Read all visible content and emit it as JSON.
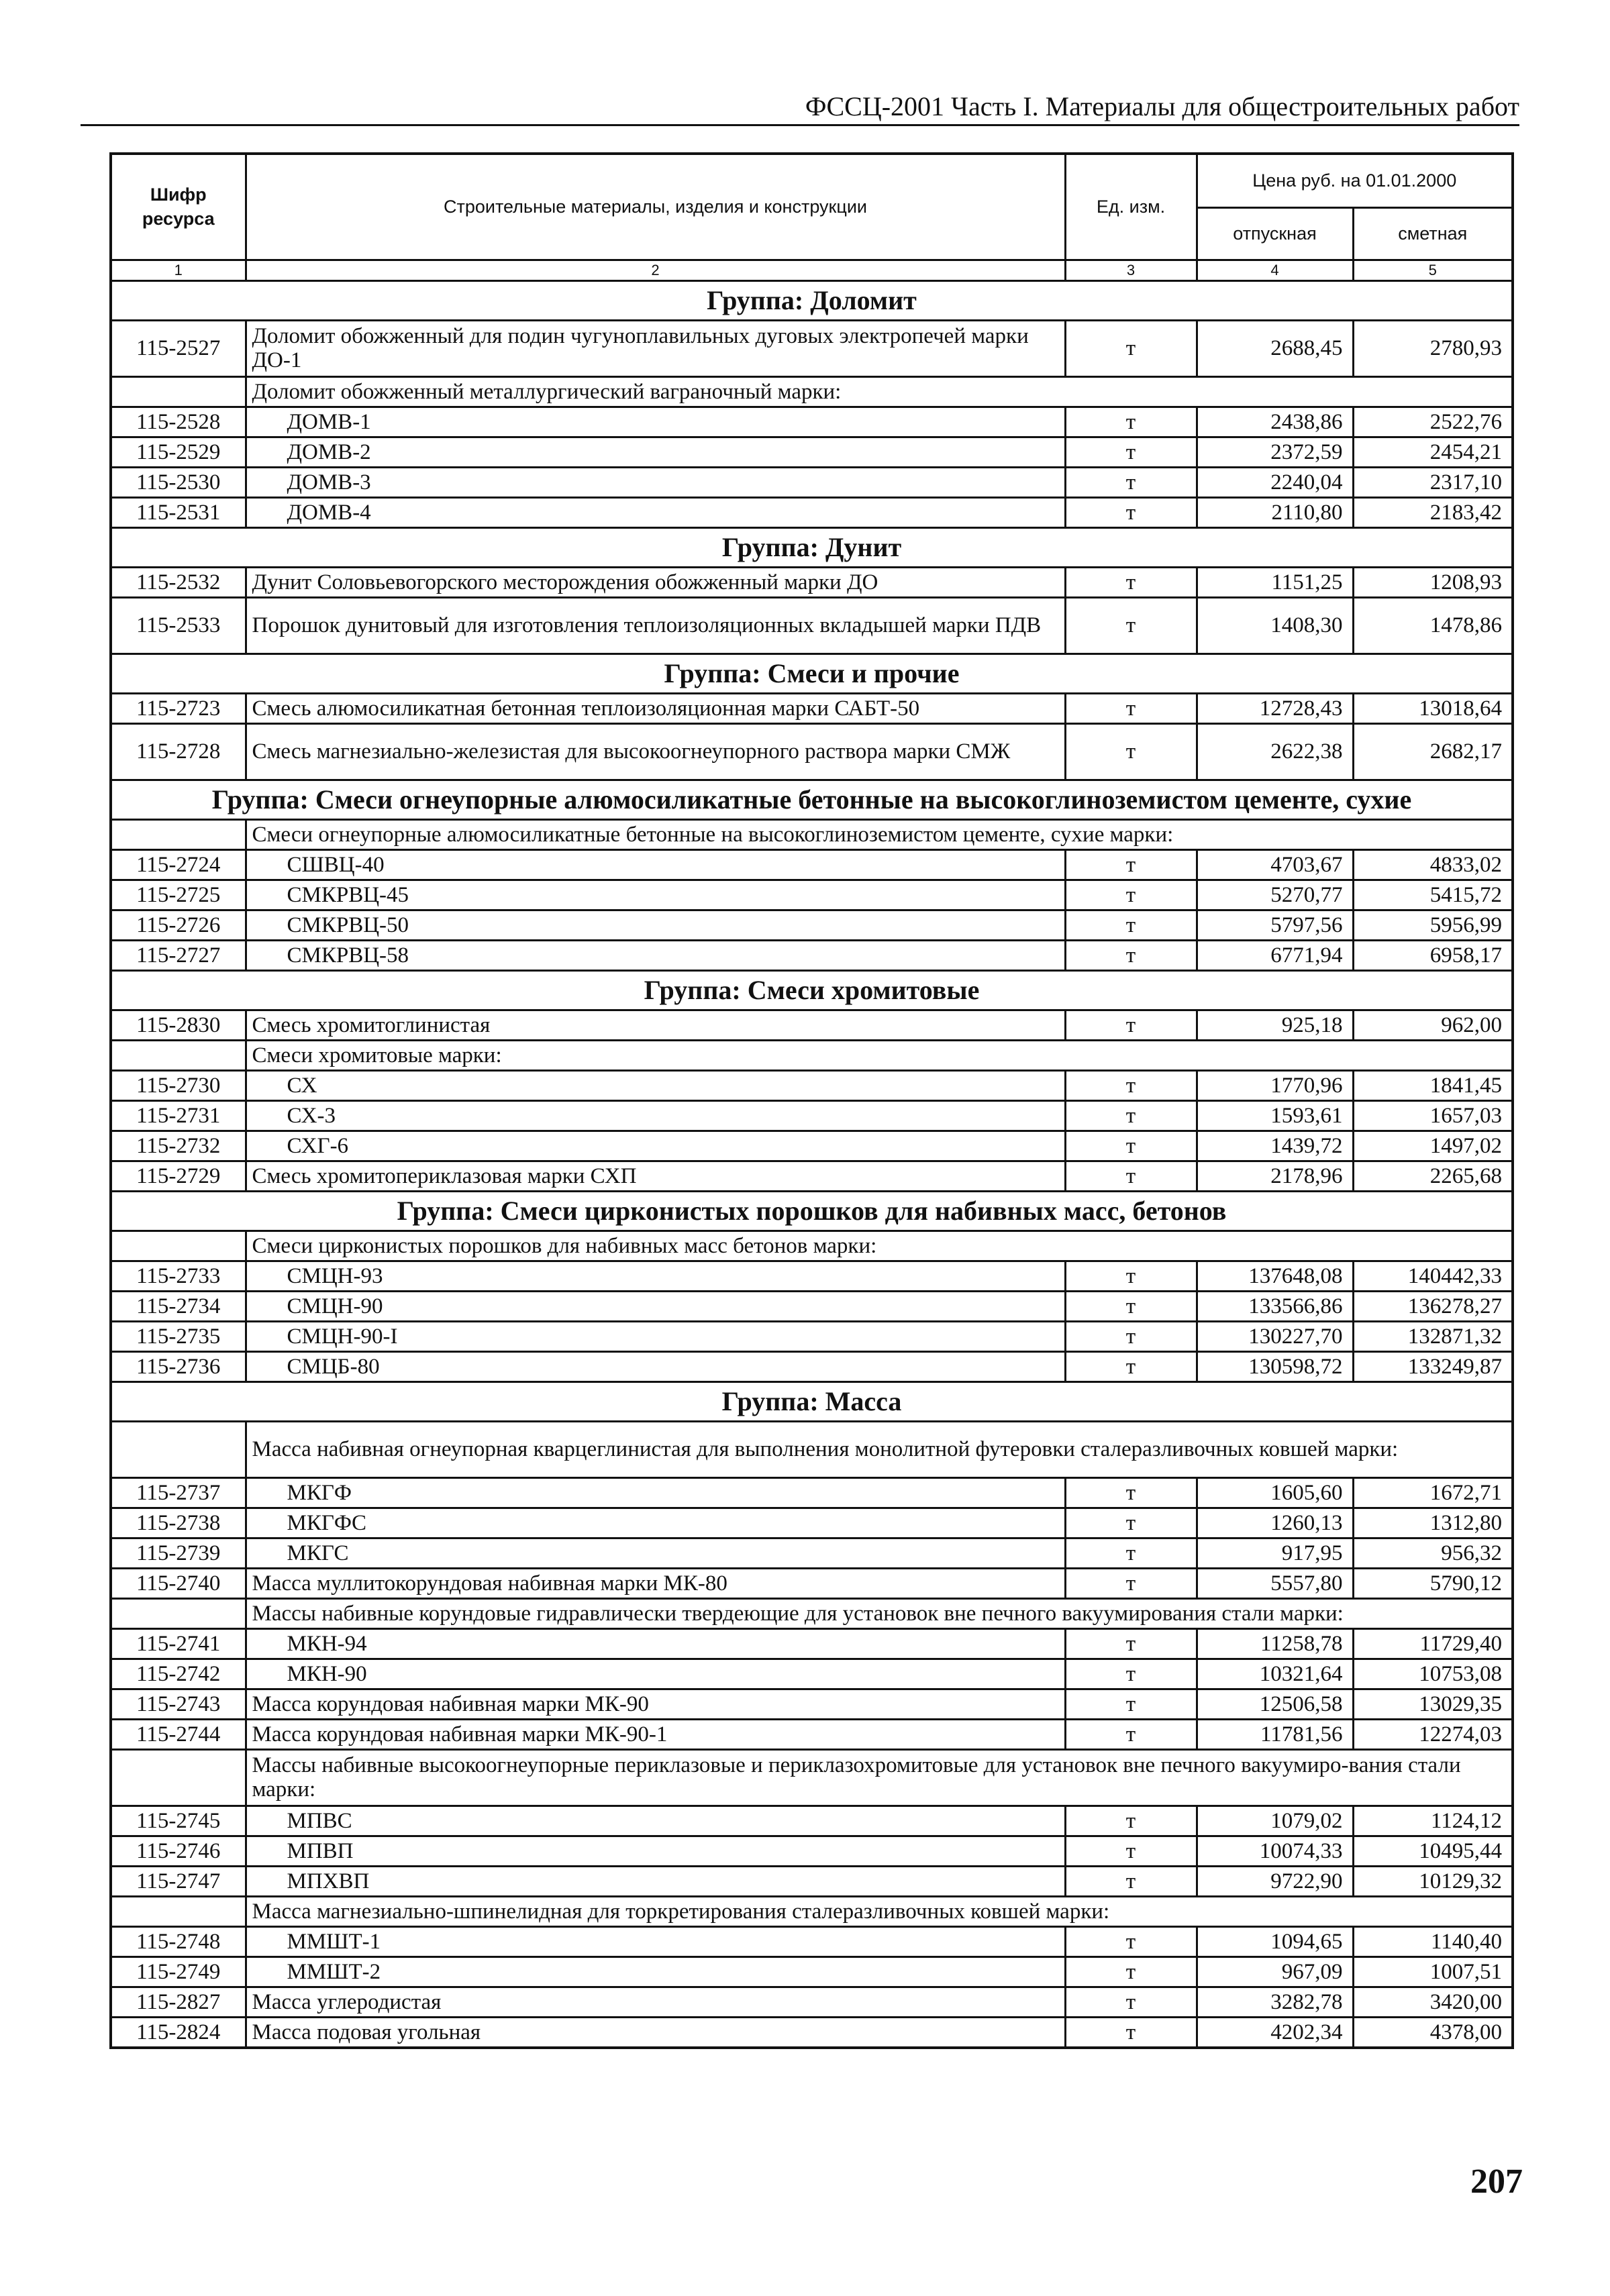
{
  "running_head": "ФССЦ-2001 Часть I. Материалы для общестроительных работ",
  "page_number": "207",
  "table": {
    "headers": {
      "code": "Шифр ресурса",
      "name": "Строительные материалы, изделия и конструкции",
      "unit": "Ед. изм.",
      "price": "Цена руб. на 01.01.2000",
      "release": "отпускная",
      "estimate": "сметная"
    },
    "column_numbers": [
      "1",
      "2",
      "3",
      "4",
      "5"
    ],
    "rows": [
      {
        "type": "group",
        "text": "Группа: Доломит"
      },
      {
        "type": "item",
        "tall": true,
        "code": "115-2527",
        "name": "Доломит обожженный для подин чугуноплавильных дуговых электропечей марки ДО-1",
        "unit": "т",
        "release": "2688,45",
        "estimate": "2780,93"
      },
      {
        "type": "sub",
        "text": "Доломит обожженный металлургический ваграночный марки:"
      },
      {
        "type": "item",
        "indent": true,
        "code": "115-2528",
        "name": "ДОМВ-1",
        "unit": "т",
        "release": "2438,86",
        "estimate": "2522,76"
      },
      {
        "type": "item",
        "indent": true,
        "code": "115-2529",
        "name": "ДОМВ-2",
        "unit": "т",
        "release": "2372,59",
        "estimate": "2454,21"
      },
      {
        "type": "item",
        "indent": true,
        "code": "115-2530",
        "name": "ДОМВ-3",
        "unit": "т",
        "release": "2240,04",
        "estimate": "2317,10"
      },
      {
        "type": "item",
        "indent": true,
        "code": "115-2531",
        "name": "ДОМВ-4",
        "unit": "т",
        "release": "2110,80",
        "estimate": "2183,42"
      },
      {
        "type": "group",
        "text": "Группа: Дунит"
      },
      {
        "type": "item",
        "code": "115-2532",
        "name": "Дунит Соловьевогорского месторождения обожженный марки ДО",
        "unit": "т",
        "release": "1151,25",
        "estimate": "1208,93"
      },
      {
        "type": "item",
        "tall": true,
        "code": "115-2533",
        "name": "Порошок дунитовый для изготовления теплоизоляционных вкладышей марки ПДВ",
        "unit": "т",
        "release": "1408,30",
        "estimate": "1478,86"
      },
      {
        "type": "group",
        "text": "Группа: Смеси и прочие"
      },
      {
        "type": "item",
        "code": "115-2723",
        "name": "Смесь алюмосиликатная бетонная теплоизоляционная марки САБТ-50",
        "unit": "т",
        "release": "12728,43",
        "estimate": "13018,64"
      },
      {
        "type": "item",
        "tall": true,
        "code": "115-2728",
        "name": "Смесь магнезиально-железистая для высокоогнеупорного раствора марки СМЖ",
        "unit": "т",
        "release": "2622,38",
        "estimate": "2682,17"
      },
      {
        "type": "group",
        "text": "Группа: Смеси огнеупорные алюмосиликатные бетонные на высокоглиноземистом цементе, сухие"
      },
      {
        "type": "sub",
        "text": "Смеси огнеупорные алюмосиликатные бетонные на высокоглиноземистом цементе, сухие марки:"
      },
      {
        "type": "item",
        "indent": true,
        "code": "115-2724",
        "name": "СШВЦ-40",
        "unit": "т",
        "release": "4703,67",
        "estimate": "4833,02"
      },
      {
        "type": "item",
        "indent": true,
        "code": "115-2725",
        "name": "СМКРВЦ-45",
        "unit": "т",
        "release": "5270,77",
        "estimate": "5415,72"
      },
      {
        "type": "item",
        "indent": true,
        "code": "115-2726",
        "name": "СМКРВЦ-50",
        "unit": "т",
        "release": "5797,56",
        "estimate": "5956,99"
      },
      {
        "type": "item",
        "indent": true,
        "code": "115-2727",
        "name": "СМКРВЦ-58",
        "unit": "т",
        "release": "6771,94",
        "estimate": "6958,17"
      },
      {
        "type": "group",
        "text": "Группа: Смеси  хромитовые"
      },
      {
        "type": "item",
        "code": "115-2830",
        "name": "Смесь хромитоглинистая",
        "unit": "т",
        "release": "925,18",
        "estimate": "962,00"
      },
      {
        "type": "sub",
        "text": "Смеси хромитовые марки:"
      },
      {
        "type": "item",
        "indent": true,
        "code": "115-2730",
        "name": "СХ",
        "unit": "т",
        "release": "1770,96",
        "estimate": "1841,45"
      },
      {
        "type": "item",
        "indent": true,
        "code": "115-2731",
        "name": "СХ-3",
        "unit": "т",
        "release": "1593,61",
        "estimate": "1657,03"
      },
      {
        "type": "item",
        "indent": true,
        "code": "115-2732",
        "name": "СХГ-6",
        "unit": "т",
        "release": "1439,72",
        "estimate": "1497,02"
      },
      {
        "type": "item",
        "code": "115-2729",
        "name": "Смесь хромитопериклазовая марки СХП",
        "unit": "т",
        "release": "2178,96",
        "estimate": "2265,68"
      },
      {
        "type": "group",
        "text": "Группа: Смеси цирконистых порошков для набивных масс, бетонов"
      },
      {
        "type": "sub",
        "text": "Смеси цирконистых порошков для набивных масс бетонов марки:"
      },
      {
        "type": "item",
        "indent": true,
        "code": "115-2733",
        "name": "СМЦН-93",
        "unit": "т",
        "release": "137648,08",
        "estimate": "140442,33"
      },
      {
        "type": "item",
        "indent": true,
        "code": "115-2734",
        "name": "СМЦН-90",
        "unit": "т",
        "release": "133566,86",
        "estimate": "136278,27"
      },
      {
        "type": "item",
        "indent": true,
        "code": "115-2735",
        "name": "СМЦН-90-I",
        "unit": "т",
        "release": "130227,70",
        "estimate": "132871,32"
      },
      {
        "type": "item",
        "indent": true,
        "code": "115-2736",
        "name": "СМЦБ-80",
        "unit": "т",
        "release": "130598,72",
        "estimate": "133249,87"
      },
      {
        "type": "group",
        "text": "Группа: Масса"
      },
      {
        "type": "sub",
        "tall": true,
        "text": "Масса набивная огнеупорная кварцеглинистая для выполнения монолитной футеровки сталеразливочных ковшей марки:"
      },
      {
        "type": "item",
        "indent": true,
        "code": "115-2737",
        "name": "МКГФ",
        "unit": "т",
        "release": "1605,60",
        "estimate": "1672,71"
      },
      {
        "type": "item",
        "indent": true,
        "code": "115-2738",
        "name": "МКГФС",
        "unit": "т",
        "release": "1260,13",
        "estimate": "1312,80"
      },
      {
        "type": "item",
        "indent": true,
        "code": "115-2739",
        "name": "МКГС",
        "unit": "т",
        "release": "917,95",
        "estimate": "956,32"
      },
      {
        "type": "item",
        "code": "115-2740",
        "name": "Масса муллитокорундовая набивная марки МК-80",
        "unit": "т",
        "release": "5557,80",
        "estimate": "5790,12"
      },
      {
        "type": "sub",
        "text": "Массы набивные корундовые гидравлически твердеющие для установок вне печного вакуумирования стали марки:"
      },
      {
        "type": "item",
        "indent": true,
        "code": "115-2741",
        "name": "МКН-94",
        "unit": "т",
        "release": "11258,78",
        "estimate": "11729,40"
      },
      {
        "type": "item",
        "indent": true,
        "code": "115-2742",
        "name": "МКН-90",
        "unit": "т",
        "release": "10321,64",
        "estimate": "10753,08"
      },
      {
        "type": "item",
        "code": "115-2743",
        "name": "Масса корундовая набивная марки МК-90",
        "unit": "т",
        "release": "12506,58",
        "estimate": "13029,35"
      },
      {
        "type": "item",
        "code": "115-2744",
        "name": "Масса корундовая набивная марки МК-90-1",
        "unit": "т",
        "release": "11781,56",
        "estimate": "12274,03"
      },
      {
        "type": "sub",
        "tall": true,
        "text": "Массы набивные высокоогнеупорные периклазовые и периклазохромитовые для установок вне печного вакуумиро-вания стали марки:"
      },
      {
        "type": "item",
        "indent": true,
        "code": "115-2745",
        "name": "МПВС",
        "unit": "т",
        "release": "1079,02",
        "estimate": "1124,12"
      },
      {
        "type": "item",
        "indent": true,
        "code": "115-2746",
        "name": "МПВП",
        "unit": "т",
        "release": "10074,33",
        "estimate": "10495,44"
      },
      {
        "type": "item",
        "indent": true,
        "code": "115-2747",
        "name": "МПХВП",
        "unit": "т",
        "release": "9722,90",
        "estimate": "10129,32"
      },
      {
        "type": "sub",
        "text": "Масса магнезиально-шпинелидная для торкретирования сталеразливочных ковшей марки:"
      },
      {
        "type": "item",
        "indent": true,
        "code": "115-2748",
        "name": "ММШТ-1",
        "unit": "т",
        "release": "1094,65",
        "estimate": "1140,40"
      },
      {
        "type": "item",
        "indent": true,
        "code": "115-2749",
        "name": "ММШТ-2",
        "unit": "т",
        "release": "967,09",
        "estimate": "1007,51"
      },
      {
        "type": "item",
        "code": "115-2827",
        "name": "Масса углеродистая",
        "unit": "т",
        "release": "3282,78",
        "estimate": "3420,00"
      },
      {
        "type": "item",
        "code": "115-2824",
        "name": "Масса подовая угольная",
        "unit": "т",
        "release": "4202,34",
        "estimate": "4378,00"
      }
    ]
  }
}
